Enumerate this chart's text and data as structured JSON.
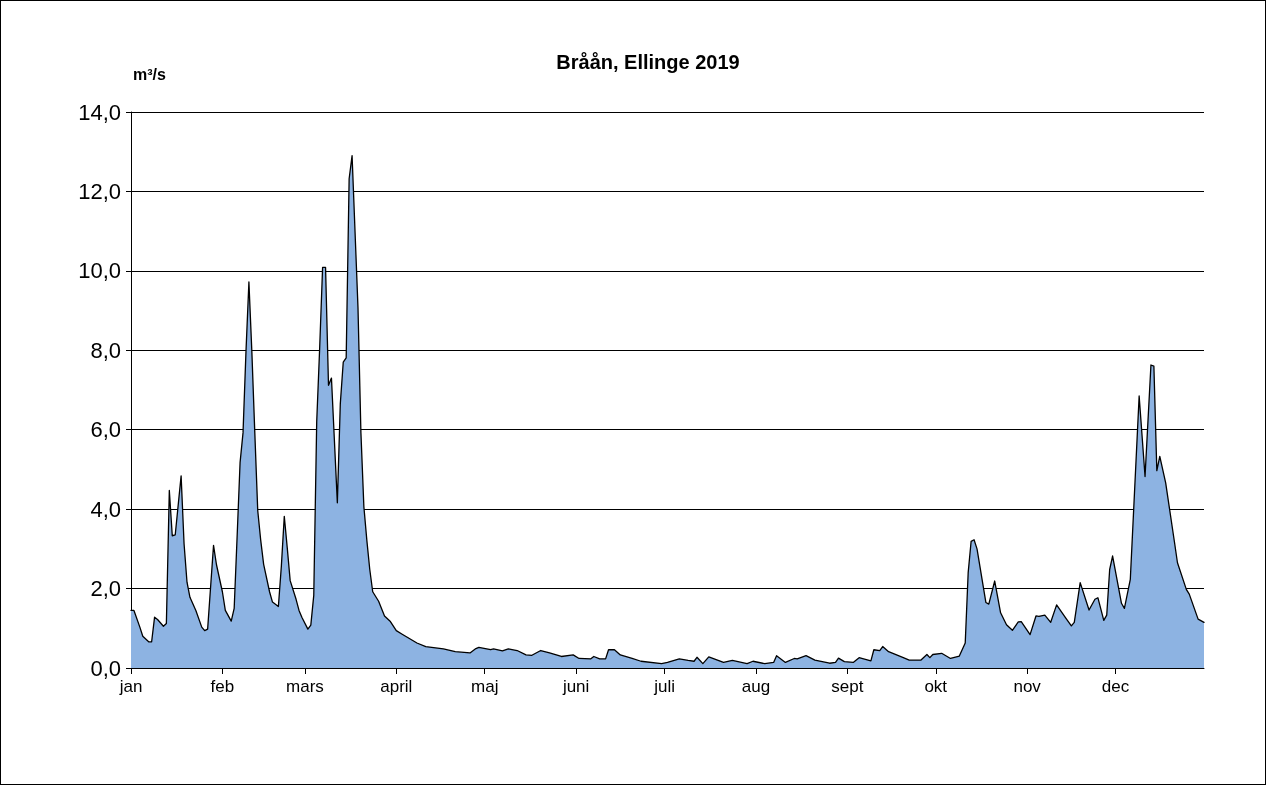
{
  "chart_data": {
    "type": "area",
    "title": "Bråån, Ellinge 2019",
    "ylabel": "m³/s",
    "xlim": [
      "--01-01",
      "--12-31"
    ],
    "xticks": [
      {
        "value": "--01-01",
        "label": "jan"
      },
      {
        "value": "--02-01",
        "label": "feb"
      },
      {
        "value": "--03-01",
        "label": "mars"
      },
      {
        "value": "--04-01",
        "label": "april"
      },
      {
        "value": "--05-01",
        "label": "maj"
      },
      {
        "value": "--06-01",
        "label": "juni"
      },
      {
        "value": "--07-01",
        "label": "juli"
      },
      {
        "value": "--08-01",
        "label": "aug"
      },
      {
        "value": "--09-01",
        "label": "sept"
      },
      {
        "value": "--10-01",
        "label": "okt"
      },
      {
        "value": "--11-01",
        "label": "nov"
      },
      {
        "value": "--12-01",
        "label": "dec"
      }
    ],
    "ylim": [
      0,
      14
    ],
    "yticks": [
      {
        "value": 0,
        "label": "0,0"
      },
      {
        "value": 2,
        "label": "2,0"
      },
      {
        "value": 4,
        "label": "4,0"
      },
      {
        "value": 6,
        "label": "6,0"
      },
      {
        "value": 8,
        "label": "8,0"
      },
      {
        "value": 10,
        "label": "10,0"
      },
      {
        "value": 12,
        "label": "12,0"
      },
      {
        "value": 14,
        "label": "14,0"
      }
    ],
    "grid": "y",
    "marker": "none",
    "line_style": "solid",
    "series": [
      {
        "color": "#8db3e2",
        "x": [
          "--01-01",
          "--01-02",
          "--01-04",
          "--01-05",
          "--01-07",
          "--01-08",
          "--01-09",
          "--01-10",
          "--01-12",
          "--01-13",
          "--01-14",
          "--01-15",
          "--01-16",
          "--01-18",
          "--01-19",
          "--01-20",
          "--01-21",
          "--01-23",
          "--01-25",
          "--01-26",
          "--01-27",
          "--01-29",
          "--01-30",
          "--02-01",
          "--02-02",
          "--02-04",
          "--02-05",
          "--02-06",
          "--02-07",
          "--02-08",
          "--02-09",
          "--02-10",
          "--02-11",
          "--02-12",
          "--02-13",
          "--02-14",
          "--02-15",
          "--02-17",
          "--02-18",
          "--02-20",
          "--02-21",
          "--02-22",
          "--02-23",
          "--02-24",
          "--02-26",
          "--02-27",
          "--02-28",
          "--03-02",
          "--03-03",
          "--03-04",
          "--03-05",
          "--03-06",
          "--03-07",
          "--03-08",
          "--03-09",
          "--03-10",
          "--03-12",
          "--03-13",
          "--03-14",
          "--03-15",
          "--03-16",
          "--03-17",
          "--03-19",
          "--03-20",
          "--03-21",
          "--03-22",
          "--03-23",
          "--03-24",
          "--03-26",
          "--03-28",
          "--03-30",
          "--04-01",
          "--04-03",
          "--04-08",
          "--04-11",
          "--04-17",
          "--04-21",
          "--04-26",
          "--04-28",
          "--04-29",
          "--05-03",
          "--05-04",
          "--05-07",
          "--05-09",
          "--05-12",
          "--05-15",
          "--05-17",
          "--05-20",
          "--05-23",
          "--05-27",
          "--05-31",
          "--06-02",
          "--06-06",
          "--06-07",
          "--06-09",
          "--06-11",
          "--06-12",
          "--06-14",
          "--06-16",
          "--06-20",
          "--06-23",
          "--06-30",
          "--07-02",
          "--07-06",
          "--07-09",
          "--07-11",
          "--07-12",
          "--07-14",
          "--07-16",
          "--07-21",
          "--07-24",
          "--07-29",
          "--07-31",
          "--08-04",
          "--08-07",
          "--08-08",
          "--08-11",
          "--08-14",
          "--08-15",
          "--08-18",
          "--08-21",
          "--08-26",
          "--08-28",
          "--08-29",
          "--08-31",
          "--09-03",
          "--09-05",
          "--09-09",
          "--09-10",
          "--09-12",
          "--09-13",
          "--09-15",
          "--09-20",
          "--09-22",
          "--09-26",
          "--09-28",
          "--09-29",
          "--09-30",
          "--10-03",
          "--10-06",
          "--10-09",
          "--10-11",
          "--10-12",
          "--10-13",
          "--10-14",
          "--10-15",
          "--10-18",
          "--10-19",
          "--10-21",
          "--10-23",
          "--10-25",
          "--10-27",
          "--10-29",
          "--10-30",
          "--11-02",
          "--11-04",
          "--11-05",
          "--11-07",
          "--11-09",
          "--11-11",
          "--11-14",
          "--11-16",
          "--11-17",
          "--11-19",
          "--11-22",
          "--11-24",
          "--11-25",
          "--11-27",
          "--11-28",
          "--11-29",
          "--11-30",
          "--12-03",
          "--12-04",
          "--12-06",
          "--12-09",
          "--12-11",
          "--12-13",
          "--12-14",
          "--12-15",
          "--12-16",
          "--12-18",
          "--12-21",
          "--12-22",
          "--12-25",
          "--12-26",
          "--12-29",
          "--12-31"
        ],
        "values": [
          1.45,
          1.45,
          1.03,
          0.8,
          0.66,
          0.66,
          1.28,
          1.22,
          1.05,
          1.12,
          4.47,
          3.33,
          3.35,
          4.84,
          3.13,
          2.16,
          1.78,
          1.45,
          1.03,
          0.94,
          0.98,
          3.09,
          2.6,
          1.92,
          1.45,
          1.18,
          1.5,
          3.31,
          5.17,
          5.92,
          7.96,
          9.72,
          7.96,
          5.92,
          3.96,
          3.22,
          2.61,
          1.92,
          1.66,
          1.55,
          2.56,
          3.82,
          3.03,
          2.2,
          1.73,
          1.45,
          1.27,
          0.98,
          1.08,
          1.83,
          6.2,
          8.05,
          10.09,
          10.09,
          7.12,
          7.3,
          4.16,
          6.65,
          7.7,
          7.81,
          12.32,
          12.9,
          9.08,
          5.92,
          4.06,
          3.22,
          2.48,
          1.92,
          1.68,
          1.31,
          1.17,
          0.94,
          0.85,
          0.63,
          0.54,
          0.48,
          0.41,
          0.38,
          0.49,
          0.52,
          0.46,
          0.48,
          0.43,
          0.48,
          0.44,
          0.33,
          0.32,
          0.44,
          0.38,
          0.29,
          0.33,
          0.24,
          0.23,
          0.29,
          0.23,
          0.23,
          0.46,
          0.46,
          0.33,
          0.24,
          0.17,
          0.11,
          0.14,
          0.23,
          0.19,
          0.17,
          0.27,
          0.11,
          0.28,
          0.14,
          0.19,
          0.11,
          0.17,
          0.11,
          0.14,
          0.31,
          0.14,
          0.24,
          0.23,
          0.31,
          0.2,
          0.12,
          0.14,
          0.25,
          0.16,
          0.14,
          0.26,
          0.18,
          0.46,
          0.44,
          0.54,
          0.41,
          0.26,
          0.2,
          0.2,
          0.34,
          0.26,
          0.34,
          0.37,
          0.24,
          0.3,
          0.63,
          2.4,
          3.19,
          3.23,
          3.0,
          1.65,
          1.61,
          2.19,
          1.39,
          1.09,
          0.95,
          1.16,
          1.17,
          0.84,
          1.31,
          1.3,
          1.33,
          1.15,
          1.59,
          1.27,
          1.06,
          1.15,
          2.15,
          1.46,
          1.73,
          1.77,
          1.2,
          1.33,
          2.48,
          2.82,
          1.63,
          1.5,
          2.23,
          6.85,
          4.82,
          7.63,
          7.6,
          4.97,
          5.33,
          4.66,
          3.16,
          2.65,
          1.98,
          1.86,
          1.23,
          1.15
        ]
      }
    ]
  }
}
